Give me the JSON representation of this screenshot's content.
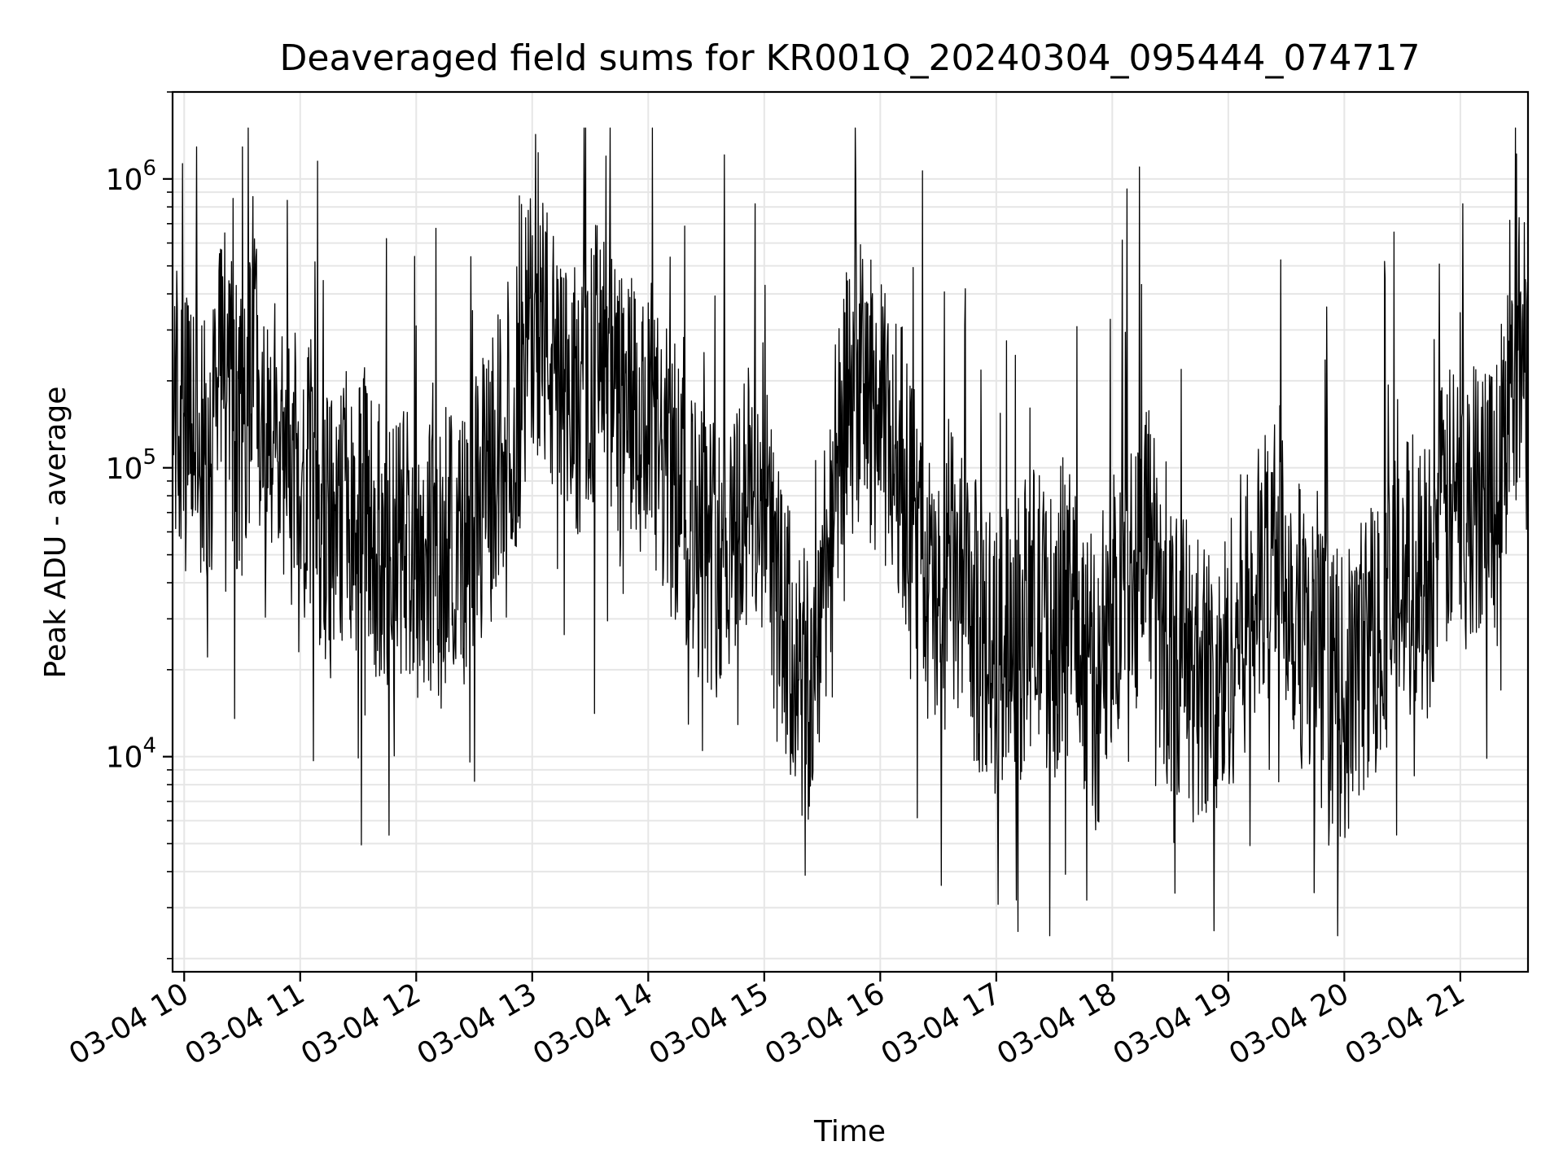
{
  "chart_data": {
    "type": "line",
    "title": "Deaveraged field sums for KR001Q_20240304_095444_074717",
    "xlabel": "Time",
    "ylabel": "Peak ADU - average",
    "yscale": "log",
    "ylim": [
      1800,
      2000000
    ],
    "xlim": [
      "2024-03-04 09:54",
      "2024-03-04 21:35"
    ],
    "grid": "on",
    "legend": "none",
    "line_color": "#000000",
    "x_ticks": [
      {
        "t": "2024-03-04 10:00",
        "label": "03-04 10"
      },
      {
        "t": "2024-03-04 11:00",
        "label": "03-04 11"
      },
      {
        "t": "2024-03-04 12:00",
        "label": "03-04 12"
      },
      {
        "t": "2024-03-04 13:00",
        "label": "03-04 13"
      },
      {
        "t": "2024-03-04 14:00",
        "label": "03-04 14"
      },
      {
        "t": "2024-03-04 15:00",
        "label": "03-04 15"
      },
      {
        "t": "2024-03-04 16:00",
        "label": "03-04 16"
      },
      {
        "t": "2024-03-04 17:00",
        "label": "03-04 17"
      },
      {
        "t": "2024-03-04 18:00",
        "label": "03-04 18"
      },
      {
        "t": "2024-03-04 19:00",
        "label": "03-04 19"
      },
      {
        "t": "2024-03-04 20:00",
        "label": "03-04 20"
      },
      {
        "t": "2024-03-04 21:00",
        "label": "03-04 21"
      }
    ],
    "y_ticks": [
      {
        "value": 10000,
        "base": "10",
        "exp": "4"
      },
      {
        "value": 100000,
        "base": "10",
        "exp": "5"
      },
      {
        "value": 1000000,
        "base": "10",
        "exp": "6"
      }
    ],
    "series": [
      {
        "x": [
          "2024-03-04 09:54",
          "2024-03-04 10:00",
          "2024-03-04 10:06",
          "2024-03-04 10:12",
          "2024-03-04 10:18",
          "2024-03-04 10:24",
          "2024-03-04 10:30",
          "2024-03-04 10:36",
          "2024-03-04 10:42",
          "2024-03-04 10:48",
          "2024-03-04 10:54",
          "2024-03-04 11:00",
          "2024-03-04 11:06",
          "2024-03-04 11:12",
          "2024-03-04 11:18",
          "2024-03-04 11:24",
          "2024-03-04 11:30",
          "2024-03-04 11:36",
          "2024-03-04 11:42",
          "2024-03-04 11:48",
          "2024-03-04 11:54",
          "2024-03-04 12:00",
          "2024-03-04 12:06",
          "2024-03-04 12:12",
          "2024-03-04 12:18",
          "2024-03-04 12:24",
          "2024-03-04 12:30",
          "2024-03-04 12:36",
          "2024-03-04 12:42",
          "2024-03-04 12:48",
          "2024-03-04 12:54",
          "2024-03-04 13:00",
          "2024-03-04 13:06",
          "2024-03-04 13:12",
          "2024-03-04 13:18",
          "2024-03-04 13:24",
          "2024-03-04 13:30",
          "2024-03-04 13:36",
          "2024-03-04 13:42",
          "2024-03-04 13:48",
          "2024-03-04 13:54",
          "2024-03-04 14:00",
          "2024-03-04 14:06",
          "2024-03-04 14:12",
          "2024-03-04 14:18",
          "2024-03-04 14:24",
          "2024-03-04 14:30",
          "2024-03-04 14:36",
          "2024-03-04 14:42",
          "2024-03-04 14:48",
          "2024-03-04 14:54",
          "2024-03-04 15:00",
          "2024-03-04 15:06",
          "2024-03-04 15:12",
          "2024-03-04 15:18",
          "2024-03-04 15:24",
          "2024-03-04 15:30",
          "2024-03-04 15:36",
          "2024-03-04 15:42",
          "2024-03-04 15:48",
          "2024-03-04 15:54",
          "2024-03-04 16:00",
          "2024-03-04 16:06",
          "2024-03-04 16:12",
          "2024-03-04 16:18",
          "2024-03-04 16:24",
          "2024-03-04 16:30",
          "2024-03-04 16:36",
          "2024-03-04 16:42",
          "2024-03-04 16:48",
          "2024-03-04 16:54",
          "2024-03-04 17:00",
          "2024-03-04 17:06",
          "2024-03-04 17:12",
          "2024-03-04 17:18",
          "2024-03-04 17:24",
          "2024-03-04 17:30",
          "2024-03-04 17:36",
          "2024-03-04 17:42",
          "2024-03-04 17:48",
          "2024-03-04 17:54",
          "2024-03-04 18:00",
          "2024-03-04 18:06",
          "2024-03-04 18:12",
          "2024-03-04 18:18",
          "2024-03-04 18:24",
          "2024-03-04 18:30",
          "2024-03-04 18:36",
          "2024-03-04 18:42",
          "2024-03-04 18:48",
          "2024-03-04 18:54",
          "2024-03-04 19:00",
          "2024-03-04 19:06",
          "2024-03-04 19:12",
          "2024-03-04 19:18",
          "2024-03-04 19:24",
          "2024-03-04 19:30",
          "2024-03-04 19:36",
          "2024-03-04 19:42",
          "2024-03-04 19:48",
          "2024-03-04 19:54",
          "2024-03-04 20:00",
          "2024-03-04 20:06",
          "2024-03-04 20:12",
          "2024-03-04 20:18",
          "2024-03-04 20:24",
          "2024-03-04 20:30",
          "2024-03-04 20:36",
          "2024-03-04 20:42",
          "2024-03-04 20:48",
          "2024-03-04 20:54",
          "2024-03-04 21:00",
          "2024-03-04 21:06",
          "2024-03-04 21:12",
          "2024-03-04 21:18",
          "2024-03-04 21:24",
          "2024-03-04 21:30",
          "2024-03-04 21:35"
        ],
        "y": [
          200000,
          120000,
          150000,
          90000,
          250000,
          180000,
          110000,
          300000,
          95000,
          130000,
          85000,
          70000,
          90000,
          60000,
          55000,
          75000,
          80000,
          65000,
          50000,
          45000,
          60000,
          48000,
          55000,
          40000,
          70000,
          50000,
          65000,
          80000,
          110000,
          150000,
          170000,
          380000,
          300000,
          200000,
          150000,
          180000,
          220000,
          250000,
          170000,
          160000,
          140000,
          120000,
          110000,
          90000,
          80000,
          60000,
          55000,
          50000,
          60000,
          70000,
          80000,
          90000,
          35000,
          25000,
          18000,
          15000,
          40000,
          80000,
          150000,
          200000,
          180000,
          140000,
          120000,
          100000,
          60000,
          40000,
          30000,
          45000,
          35000,
          30000,
          25000,
          20000,
          30000,
          25000,
          35000,
          30000,
          25000,
          40000,
          30000,
          20000,
          15000,
          30000,
          50000,
          45000,
          70000,
          30000,
          20000,
          25000,
          18000,
          20000,
          15000,
          22000,
          30000,
          35000,
          40000,
          60000,
          45000,
          30000,
          25000,
          20000,
          18000,
          15000,
          20000,
          25000,
          30000,
          35000,
          40000,
          45000,
          40000,
          60000,
          70000,
          80000,
          75000,
          90000,
          85000,
          150000,
          250000,
          300000
        ]
      }
    ]
  }
}
